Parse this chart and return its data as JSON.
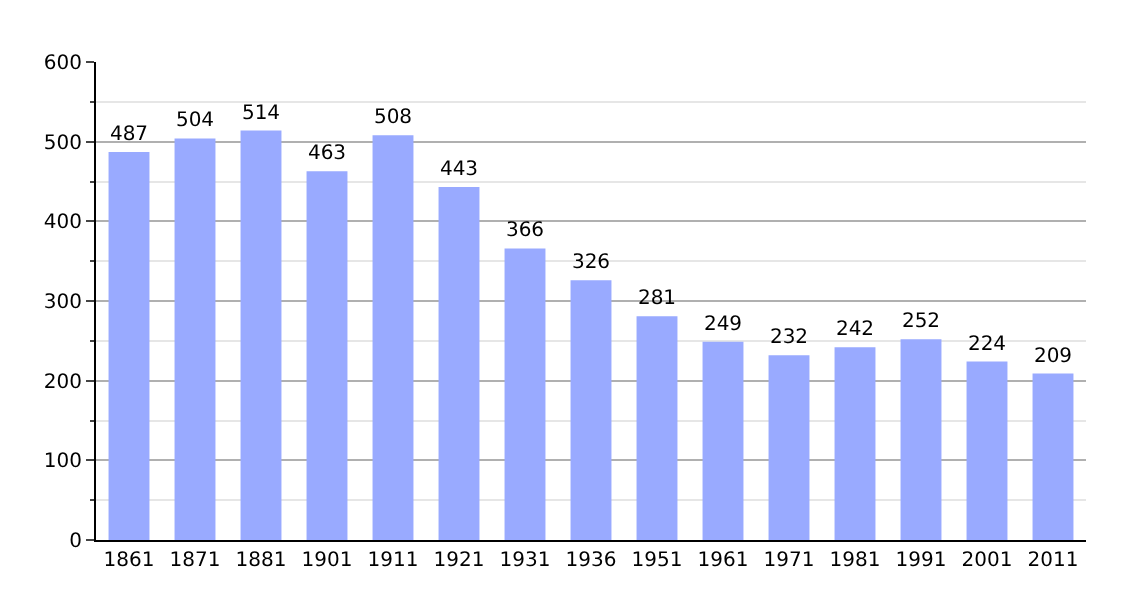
{
  "chart_data": {
    "type": "bar",
    "categories": [
      "1861",
      "1871",
      "1881",
      "1901",
      "1911",
      "1921",
      "1931",
      "1936",
      "1951",
      "1961",
      "1971",
      "1981",
      "1991",
      "2001",
      "2011"
    ],
    "values": [
      487,
      504,
      514,
      463,
      508,
      443,
      366,
      326,
      281,
      249,
      232,
      242,
      252,
      224,
      209
    ],
    "color": "#99aaff",
    "ylim": [
      0,
      600
    ],
    "yticks": [
      0,
      100,
      200,
      300,
      400,
      500,
      600
    ],
    "grid": "y",
    "data_labels": true
  }
}
